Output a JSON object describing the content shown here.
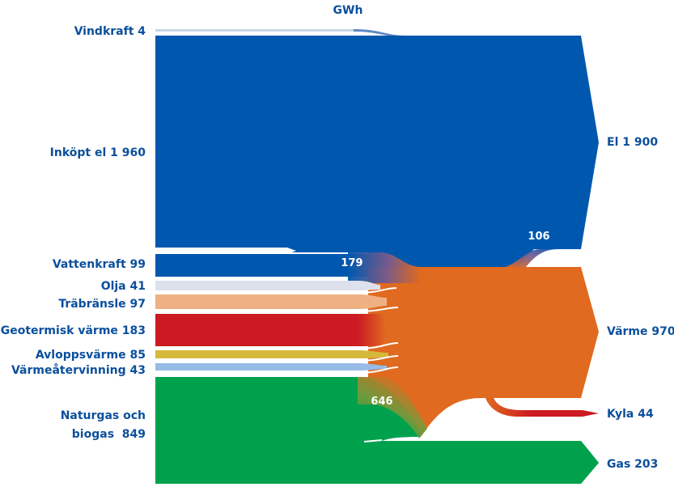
{
  "unit": "GWh",
  "colors": {
    "el": "#0058ae",
    "vind_line": "#c8d6e6",
    "olja": "#dde1ee",
    "trabransle": "#efb184",
    "geotermisk": "#cc1a23",
    "avlopp": "#d6b83c",
    "varmeater": "#98bce6",
    "naturgas": "#00a14d",
    "varme": "#e06a1f",
    "kyla": "#cc1a23",
    "label": "#0b4f9c",
    "white": "#ffffff"
  },
  "inputs": [
    {
      "key": "vindkraft",
      "label": "Vindkraft 4"
    },
    {
      "key": "inkopt_el",
      "label": "Inköpt el 1 960"
    },
    {
      "key": "vattenkraft",
      "label": "Vattenkraft 99"
    },
    {
      "key": "olja",
      "label": "Olja 41"
    },
    {
      "key": "trabransle",
      "label": "Träbränsle 97"
    },
    {
      "key": "geotermisk",
      "label": "Geotermisk värme 183"
    },
    {
      "key": "avlopp",
      "label": "Avloppsvärme 85"
    },
    {
      "key": "varmeatervinning",
      "label": "Värmeåtervinning 43"
    },
    {
      "key": "naturgas",
      "label_line1": "Naturgas och",
      "label_line2": "biogas  849"
    }
  ],
  "outputs": [
    {
      "key": "el",
      "label": "El 1 900"
    },
    {
      "key": "varme",
      "label": "Värme 970"
    },
    {
      "key": "kyla",
      "label": "Kyla 44"
    },
    {
      "key": "gas",
      "label": "Gas 203"
    }
  ],
  "flow_values": {
    "el_to_varme": "179",
    "el_to_kyla": "106",
    "gas_to_varme": "646"
  }
}
